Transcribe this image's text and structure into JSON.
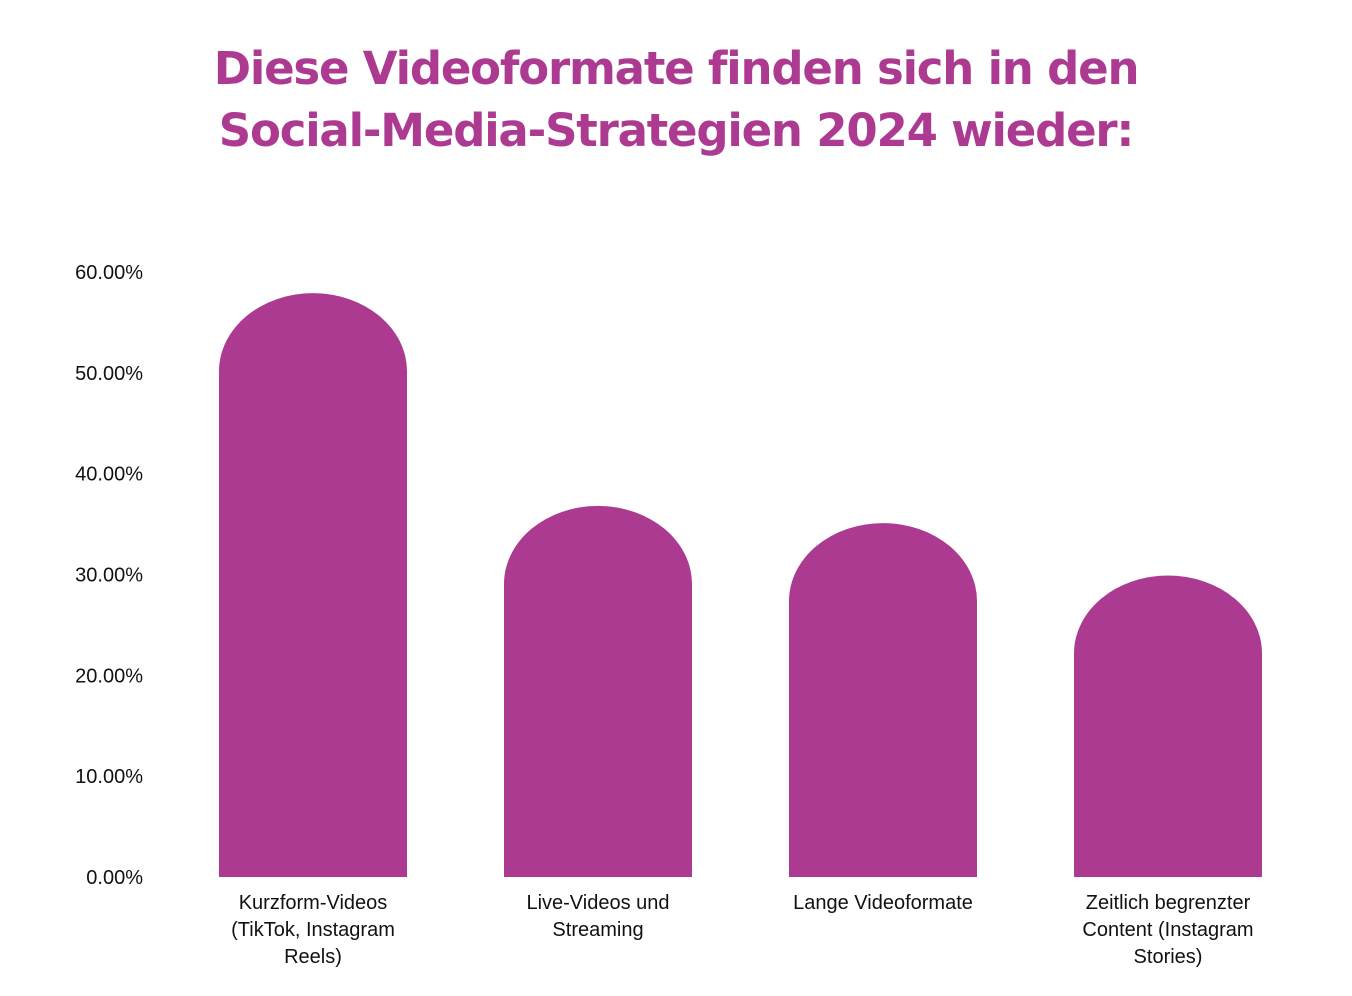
{
  "title": {
    "line1": "Diese Videoformate finden sich in den",
    "line2": "Social-Media-Strategien 2024 wieder:"
  },
  "colors": {
    "accent": "#AC3A91",
    "text": "#111111",
    "background": "#FFFFFF"
  },
  "chart_data": {
    "type": "bar",
    "title": "Diese Videoformate finden sich in den Social-Media-Strategien 2024 wieder:",
    "categories": [
      "Kurzform-Videos (TikTok, Instagram Reels)",
      "Live-Videos und Streaming",
      "Lange Videoformate",
      "Zeitlich begrenzter Content (Instagram Stories)"
    ],
    "category_lines": [
      [
        "Kurzform-Videos",
        "(TikTok, Instagram",
        "Reels)"
      ],
      [
        "Live-Videos und",
        "Streaming"
      ],
      [
        "Lange Videoformate"
      ],
      [
        "Zeitlich begrenzter",
        "Content (Instagram",
        "Stories)"
      ]
    ],
    "values": [
      57.9,
      36.8,
      35.1,
      29.9
    ],
    "ylim": [
      0,
      60
    ],
    "yticks": [
      "0.00%",
      "10.00%",
      "20.00%",
      "30.00%",
      "40.00%",
      "50.00%",
      "60.00%"
    ],
    "xlabel": "",
    "ylabel": "",
    "grid": false,
    "legend": "none"
  }
}
